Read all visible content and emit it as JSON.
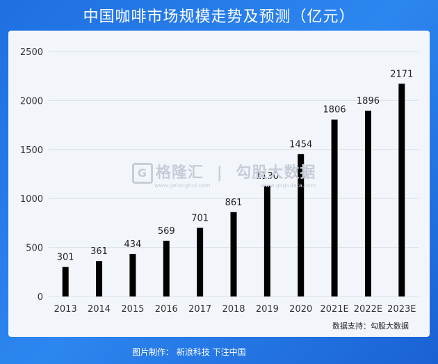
{
  "chart_data": {
    "type": "bar",
    "title": "中国咖啡市场规模走势及预测（亿元）",
    "categories": [
      "2013",
      "2014",
      "2015",
      "2016",
      "2017",
      "2018",
      "2019",
      "2020",
      "2021E",
      "2022E",
      "2023E"
    ],
    "values": [
      301,
      361,
      434,
      569,
      701,
      861,
      1130,
      1454,
      1806,
      1896,
      2171
    ],
    "data_labels": [
      "301",
      "361",
      "434",
      "569",
      "701",
      "861",
      "1130",
      "1454",
      "1806",
      "1896",
      "2171"
    ],
    "ylim": [
      0,
      2500
    ],
    "yticks": [
      0,
      500,
      1000,
      1500,
      2000,
      2500
    ],
    "ytick_labels": [
      "0",
      "500",
      "1000",
      "1500",
      "2000",
      "2500"
    ],
    "grid": true,
    "bar_color": "#000000",
    "source_note": "数据支持：勾股大数据"
  },
  "watermark": {
    "brand": "格隆汇",
    "divider": "|",
    "partner": "勾股大数据",
    "url_left": "www.gelonghui.com",
    "url_right": "www.gogudata.com"
  },
  "footer": {
    "credit": "图片制作：  新浪科技  下注中国"
  },
  "colors": {
    "background": "#2378e6",
    "panel": "#f2f6fb",
    "gridline": "#d9e0ea"
  }
}
